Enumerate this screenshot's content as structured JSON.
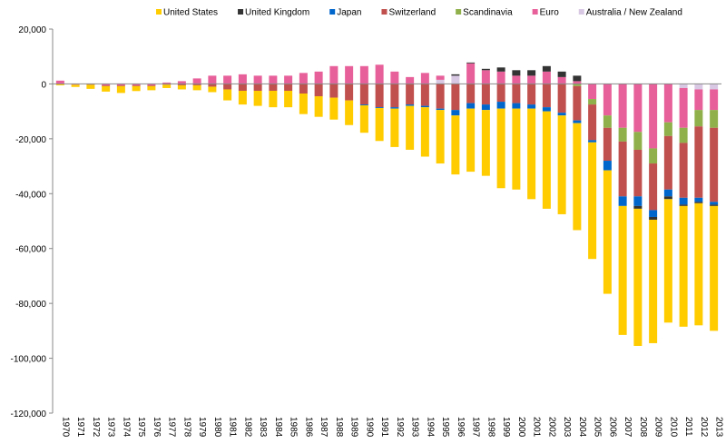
{
  "chart_data": {
    "type": "stacked_bar",
    "categories": [
      "1970",
      "1971",
      "1972",
      "1973",
      "1974",
      "1975",
      "1976",
      "1977",
      "1978",
      "1979",
      "1980",
      "1981",
      "1982",
      "1983",
      "1984",
      "1985",
      "1986",
      "1987",
      "1988",
      "1989",
      "1990",
      "1991",
      "1992",
      "1993",
      "1994",
      "1995",
      "1996",
      "1997",
      "1998",
      "1999",
      "2000",
      "2001",
      "2002",
      "2003",
      "2004",
      "2005",
      "2006",
      "2007",
      "2008",
      "2009",
      "2010",
      "2011",
      "2012",
      "2013"
    ],
    "series": [
      {
        "name": "United States",
        "color": "#ffcc00",
        "values": [
          -500,
          -800,
          -1500,
          -2000,
          -2500,
          -1800,
          -1500,
          -1200,
          -1500,
          -1800,
          -2000,
          -4000,
          -5000,
          -5500,
          -6000,
          -6000,
          -7500,
          -7500,
          -8000,
          -9000,
          -10000,
          -12000,
          -14000,
          -16000,
          -18000,
          -19500,
          -21500,
          -23000,
          -24000,
          -29000,
          -29500,
          -33000,
          -35500,
          -36000,
          -39000,
          -42500,
          -45000,
          -47000,
          -50000,
          -45000,
          -45000,
          -44000,
          -44500,
          -45500
        ]
      },
      {
        "name": "United Kingdom",
        "color": "#333333",
        "values": [
          0,
          0,
          0,
          0,
          0,
          0,
          0,
          0,
          0,
          0,
          0,
          0,
          0,
          0,
          0,
          0,
          0,
          0,
          0,
          0,
          0,
          0,
          0,
          0,
          0,
          0,
          500,
          300,
          500,
          1500,
          2000,
          2000,
          2000,
          2000,
          2000,
          0,
          0,
          0,
          -1000,
          -1000,
          -1000,
          -500,
          -500,
          -500
        ]
      },
      {
        "name": "Japan",
        "color": "#0066cc",
        "values": [
          0,
          0,
          0,
          0,
          0,
          0,
          0,
          0,
          0,
          0,
          0,
          0,
          0,
          0,
          0,
          0,
          0,
          0,
          0,
          0,
          -300,
          -300,
          -500,
          -500,
          -500,
          -500,
          -2000,
          -2000,
          -2000,
          -2500,
          -2000,
          -1500,
          -1500,
          -1000,
          -1000,
          -800,
          -3500,
          -3500,
          -3500,
          -2500,
          -2500,
          -2500,
          -1500,
          -1000
        ]
      },
      {
        "name": "Switzerland",
        "color": "#c0504d",
        "values": [
          0,
          0,
          -300,
          -300,
          -300,
          -300,
          -300,
          -300,
          -500,
          -500,
          -1000,
          -2000,
          -2500,
          -2500,
          -2500,
          -2500,
          -3500,
          -4500,
          -5000,
          -6000,
          -7500,
          -8500,
          -8500,
          -7500,
          -8000,
          -9000,
          -9500,
          -7000,
          -7500,
          -6500,
          -7000,
          -7500,
          -8500,
          -10500,
          -12500,
          -13000,
          -12000,
          -20000,
          -17000,
          -17000,
          -19500,
          -20000,
          -26000,
          -27000
        ]
      },
      {
        "name": "Scandinavia",
        "color": "#8fb04a",
        "values": [
          0,
          0,
          0,
          0,
          0,
          0,
          0,
          0,
          0,
          0,
          0,
          0,
          0,
          0,
          0,
          0,
          0,
          0,
          0,
          0,
          0,
          0,
          0,
          0,
          0,
          0,
          0,
          0,
          0,
          0,
          0,
          0,
          0,
          0,
          -800,
          -2000,
          -4500,
          -5000,
          -6500,
          -5500,
          -5000,
          -5500,
          -6000,
          -6500
        ]
      },
      {
        "name": "Euro",
        "color": "#e8609a",
        "values": [
          1200,
          -300,
          0,
          -500,
          -500,
          -500,
          -500,
          500,
          1000,
          2000,
          3000,
          3000,
          3500,
          3000,
          3000,
          3000,
          4000,
          4500,
          6500,
          6500,
          6500,
          7000,
          4500,
          2500,
          4000,
          1500,
          0,
          7500,
          5000,
          4500,
          3000,
          3000,
          4500,
          2500,
          1000,
          -5500,
          -11500,
          -16000,
          -17500,
          -23500,
          -14000,
          -14500,
          -7500,
          -7500
        ]
      },
      {
        "name": "Australia / New Zealand",
        "color": "#d9c8e4",
        "values": [
          0,
          0,
          0,
          0,
          0,
          0,
          0,
          0,
          0,
          0,
          0,
          0,
          0,
          0,
          0,
          0,
          0,
          0,
          0,
          0,
          0,
          0,
          0,
          0,
          0,
          1500,
          3000,
          0,
          0,
          0,
          0,
          0,
          0,
          0,
          0,
          0,
          0,
          0,
          0,
          0,
          0,
          -1500,
          -2000,
          -2000
        ]
      }
    ],
    "ylim": [
      -120000,
      20000
    ],
    "yticks": [
      {
        "value": -120000,
        "label": "-120,000"
      },
      {
        "value": -100000,
        "label": "-100,000"
      },
      {
        "value": -80000,
        "label": "-80,000"
      },
      {
        "value": -60000,
        "label": "-60,000"
      },
      {
        "value": -40000,
        "label": "-40,000"
      },
      {
        "value": -20000,
        "label": "-20,000"
      },
      0,
      {
        "value": 20000,
        "label": "20,000"
      }
    ],
    "legend": "top"
  }
}
